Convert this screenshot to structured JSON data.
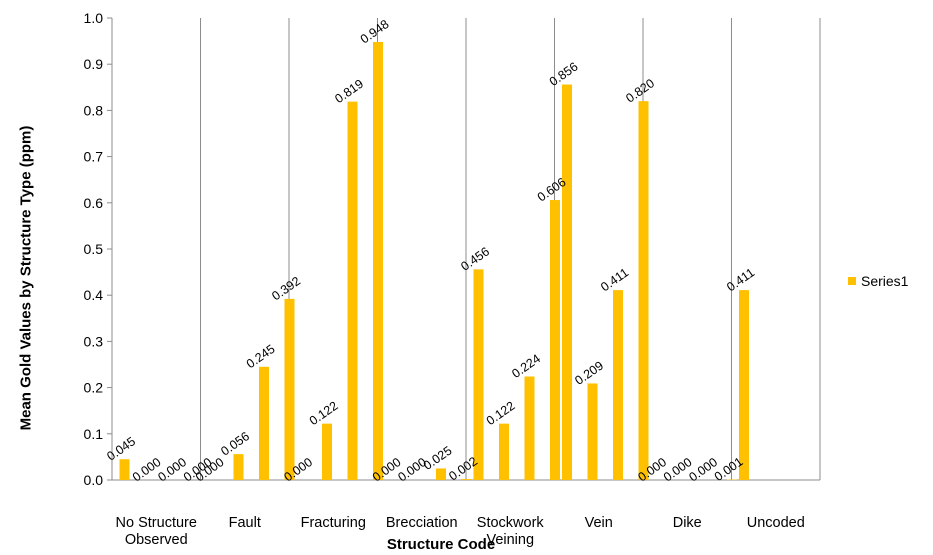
{
  "chart_data": {
    "type": "bar",
    "title": "",
    "xlabel": "Structure Code",
    "ylabel": "Mean Gold Values by Structure Type (ppm)",
    "ylim": [
      0,
      1.0
    ],
    "yticks": [
      "0.0",
      "0.1",
      "0.2",
      "0.3",
      "0.4",
      "0.5",
      "0.6",
      "0.7",
      "0.8",
      "0.9",
      "1.0"
    ],
    "grid": "vertical lines between categories",
    "legend_position": "right",
    "bar_color": "#FFC000",
    "categories": [
      {
        "label": "No Structure\nObserved",
        "values": [
          0.045,
          0.0,
          0.0,
          0.0
        ],
        "labels": [
          "0.045",
          "0.000",
          "0.000",
          "0.000"
        ]
      },
      {
        "label": "Fault",
        "values": [
          0.0,
          0.056,
          0.245,
          0.392
        ],
        "labels": [
          "0.000",
          "0.056",
          "0.245",
          "0.392"
        ]
      },
      {
        "label": "Fracturing",
        "values": [
          0.0,
          0.122,
          0.819,
          0.948
        ],
        "labels": [
          "0.000",
          "0.122",
          "0.819",
          "0.948"
        ]
      },
      {
        "label": "Brecciation",
        "values": [
          0.0,
          0.0,
          0.025,
          0.002
        ],
        "labels": [
          "0.000",
          "0.000",
          "0.025",
          "0.002"
        ]
      },
      {
        "label": "Stockwork\nVeining",
        "values": [
          0.456,
          0.122,
          0.224,
          0.606
        ],
        "labels": [
          "0.456",
          "0.122",
          "0.224",
          "0.606"
        ]
      },
      {
        "label": "Vein",
        "values": [
          0.856,
          0.209,
          0.411,
          0.82
        ],
        "labels": [
          "0.856",
          "0.209",
          "0.411",
          "0.820"
        ]
      },
      {
        "label": "Dike",
        "values": [
          0.0,
          0.0,
          0.0,
          0.001
        ],
        "labels": [
          "0.000",
          "0.000",
          "0.000",
          "0.001"
        ]
      },
      {
        "label": "Uncoded",
        "values": [
          0.411
        ],
        "labels": [
          "0.411"
        ]
      }
    ],
    "series": [
      {
        "name": "Series1"
      }
    ]
  }
}
